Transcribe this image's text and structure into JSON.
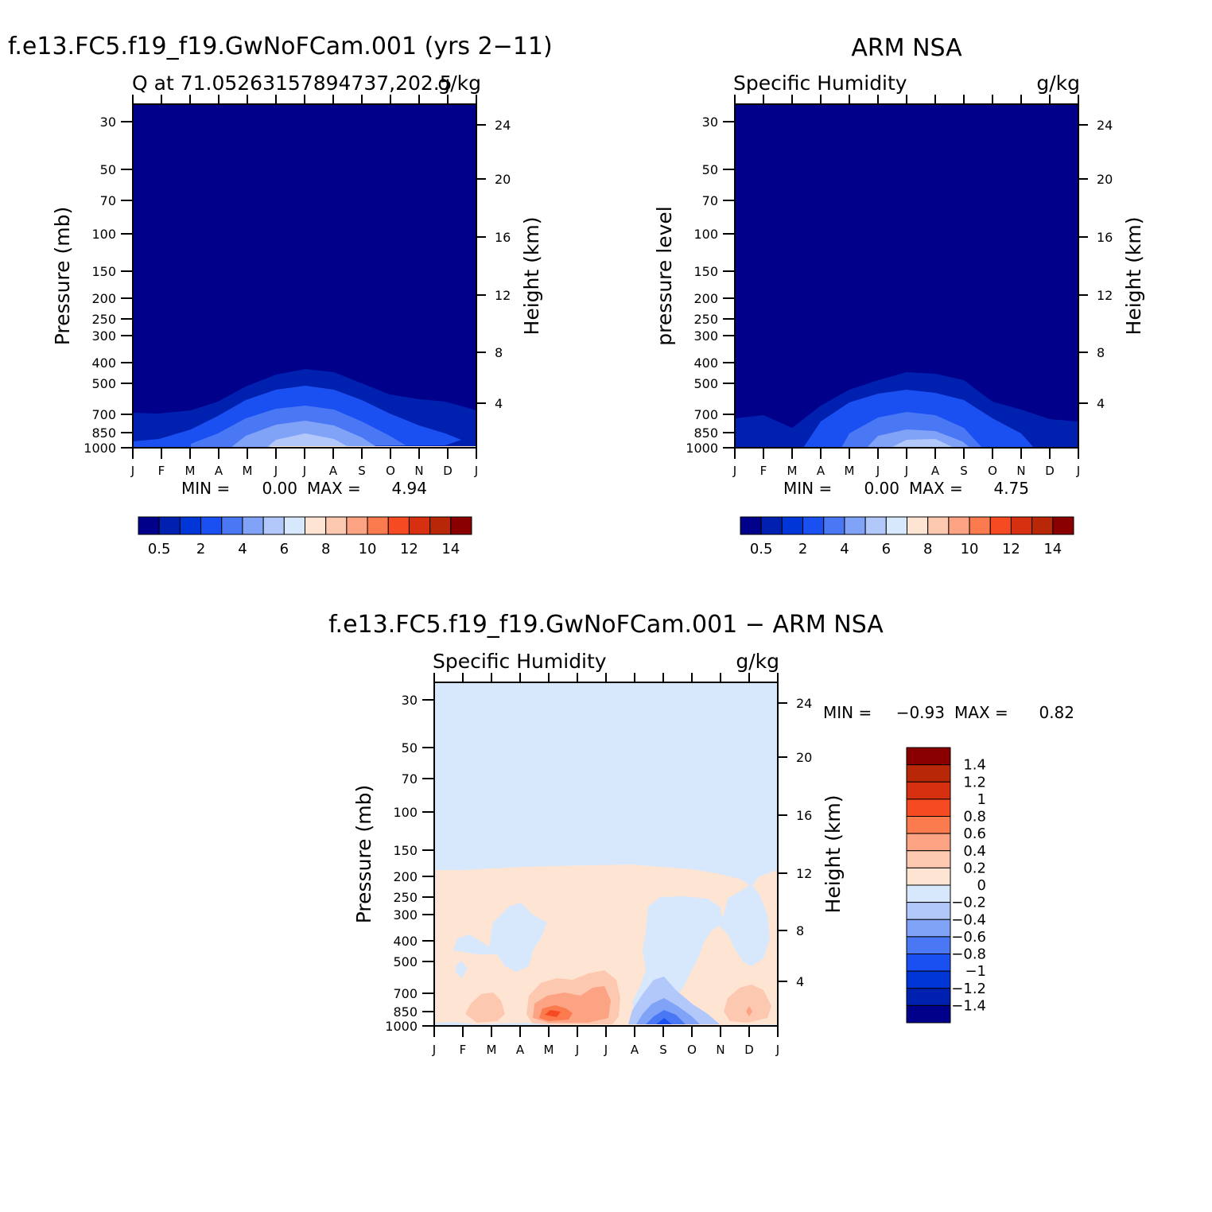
{
  "chart_data": [
    {
      "type": "heatmap",
      "title": "f.e13.FC5.f19_f19.GwNoFCam.001 (yrs 2−11)",
      "subtitle_left": "Q at 71.05263157894737,202.5",
      "subtitle_right": "g/kg",
      "ylabel": "Pressure (mb)",
      "ylabel_right": "Height (km)",
      "x_ticks": [
        "J",
        "F",
        "M",
        "A",
        "M",
        "J",
        "J",
        "A",
        "S",
        "O",
        "N",
        "D",
        "J"
      ],
      "y_ticks": [
        30,
        50,
        70,
        100,
        150,
        200,
        250,
        300,
        400,
        500,
        700,
        850,
        1000
      ],
      "y_ticks_right": [
        24,
        20,
        16,
        12,
        8,
        4
      ],
      "ylim": [
        1000,
        20
      ],
      "y_scale": "log",
      "min_label": "MIN =",
      "min_value": "0.00",
      "max_label": "MAX =",
      "max_value": "4.94",
      "colorbar": {
        "orientation": "horizontal",
        "colors": [
          "#00008a",
          "#0020b0",
          "#0035d8",
          "#1a50f2",
          "#4a78f5",
          "#80a2f7",
          "#b2c8fb",
          "#d8e8fc",
          "#fee4d2",
          "#fdc8b0",
          "#fca383",
          "#fb7a4e",
          "#f54a22",
          "#d63010",
          "#b82808",
          "#8a0000"
        ],
        "labels": [
          "0.5",
          "2",
          "4",
          "6",
          "8",
          "10",
          "12",
          "14"
        ]
      },
      "contours_g_per_kg": [
        {
          "level": 0.5,
          "top_pressure_by_month": [
            700,
            700,
            700,
            640,
            560,
            510,
            480,
            500,
            560,
            620,
            650,
            670,
            690
          ]
        },
        {
          "level": 1,
          "top_pressure_by_month": [
            1000,
            1000,
            1000,
            820,
            700,
            620,
            600,
            620,
            680,
            780,
            900,
            1000,
            1000
          ]
        },
        {
          "level": 2,
          "top_pressure_by_month": [
            1000,
            1000,
            1000,
            960,
            830,
            720,
            690,
            730,
            850,
            1000,
            1000,
            1000,
            1000
          ]
        },
        {
          "level": 3,
          "top_pressure_by_month": [
            1000,
            1000,
            1000,
            1000,
            950,
            830,
            790,
            830,
            980,
            1000,
            1000,
            1000,
            1000
          ]
        },
        {
          "level": 4,
          "top_pressure_by_month": [
            1000,
            1000,
            1000,
            1000,
            1000,
            940,
            900,
            940,
            1000,
            1000,
            1000,
            1000,
            1000
          ]
        }
      ]
    },
    {
      "type": "heatmap",
      "title": "ARM NSA",
      "subtitle_left": "Specific Humidity",
      "subtitle_right": "g/kg",
      "ylabel": "pressure level",
      "ylabel_right": "Height (km)",
      "x_ticks": [
        "J",
        "F",
        "M",
        "A",
        "M",
        "J",
        "J",
        "A",
        "S",
        "O",
        "N",
        "D",
        "J"
      ],
      "y_ticks": [
        30,
        50,
        70,
        100,
        150,
        200,
        250,
        300,
        400,
        500,
        700,
        850,
        1000
      ],
      "y_ticks_right": [
        24,
        20,
        16,
        12,
        8,
        4
      ],
      "ylim": [
        1000,
        20
      ],
      "y_scale": "log",
      "min_label": "MIN =",
      "min_value": "0.00",
      "max_label": "MAX =",
      "max_value": "4.75",
      "colorbar": {
        "orientation": "horizontal",
        "colors": [
          "#00008a",
          "#0020b0",
          "#0035d8",
          "#1a50f2",
          "#4a78f5",
          "#80a2f7",
          "#b2c8fb",
          "#d8e8fc",
          "#fee4d2",
          "#fdc8b0",
          "#fca383",
          "#fb7a4e",
          "#f54a22",
          "#d63010",
          "#b82808",
          "#8a0000"
        ],
        "labels": [
          "0.5",
          "2",
          "4",
          "6",
          "8",
          "10",
          "12",
          "14"
        ]
      },
      "contours_g_per_kg": [
        {
          "level": 0.5,
          "top_pressure_by_month": [
            700,
            700,
            800,
            700,
            600,
            520,
            490,
            510,
            560,
            620,
            670,
            700,
            700
          ]
        },
        {
          "level": 1,
          "top_pressure_by_month": [
            1000,
            1000,
            1000,
            880,
            720,
            640,
            610,
            630,
            700,
            850,
            1000,
            1000,
            1000
          ]
        },
        {
          "level": 2,
          "top_pressure_by_month": [
            1000,
            1000,
            1000,
            1000,
            880,
            760,
            720,
            740,
            870,
            1000,
            1000,
            1000,
            1000
          ]
        },
        {
          "level": 3,
          "top_pressure_by_month": [
            1000,
            1000,
            1000,
            1000,
            1000,
            880,
            830,
            860,
            1000,
            1000,
            1000,
            1000,
            1000
          ]
        }
      ]
    },
    {
      "type": "heatmap",
      "title": "f.e13.FC5.f19_f19.GwNoFCam.001 − ARM NSA",
      "subtitle_left": "Specific Humidity",
      "subtitle_right": "g/kg",
      "ylabel": "Pressure (mb)",
      "ylabel_right": "Height (km)",
      "x_ticks": [
        "J",
        "F",
        "M",
        "A",
        "M",
        "J",
        "J",
        "A",
        "S",
        "O",
        "N",
        "D",
        "J"
      ],
      "y_ticks": [
        30,
        50,
        70,
        100,
        150,
        200,
        250,
        300,
        400,
        500,
        700,
        850,
        1000
      ],
      "y_ticks_right": [
        24,
        20,
        16,
        12,
        8,
        4
      ],
      "ylim": [
        1000,
        20
      ],
      "y_scale": "log",
      "min_label": "MIN =",
      "min_value": "−0.93",
      "max_label": "MAX =",
      "max_value": "0.82",
      "colorbar": {
        "orientation": "vertical",
        "colors": [
          "#00008a",
          "#0020b0",
          "#0035d8",
          "#1a50f2",
          "#4a78f5",
          "#80a2f7",
          "#b2c8fb",
          "#d8e8fc",
          "#fee4d2",
          "#fdc8b0",
          "#fca383",
          "#fb7a4e",
          "#f54a22",
          "#d63010",
          "#b82808",
          "#8a0000"
        ],
        "labels": [
          "1.4",
          "1.2",
          "1",
          "0.8",
          "0.6",
          "0.4",
          "0.2",
          "0",
          "−0.2",
          "−0.4",
          "−0.6",
          "−0.8",
          "−1",
          "−1.2",
          "−1.4"
        ]
      },
      "contours_g_per_kg": [
        {
          "level": 0,
          "top_pressure_by_month": [
            190,
            190,
            190,
            188,
            186,
            185,
            184,
            188,
            190,
            192,
            195,
            200,
            195
          ],
          "sign": "positive below"
        },
        {
          "level": 0.2,
          "regions": "near surface Feb-Mar, May-Jul, Nov-Dec",
          "pressure_range": [
            650,
            1000
          ]
        },
        {
          "level": 0.4,
          "regions": "near surface May-Jul",
          "pressure_range": [
            750,
            950
          ]
        },
        {
          "level": -0.2,
          "regions": "Mar-Apr mid-troposphere; Aug-Oct column above surface; Nov-Dec upper-mid troposphere",
          "pressure_range": [
            250,
            1000
          ]
        },
        {
          "level": -0.6,
          "regions": "near surface Sep",
          "pressure_range": [
            750,
            1000
          ]
        }
      ]
    }
  ]
}
